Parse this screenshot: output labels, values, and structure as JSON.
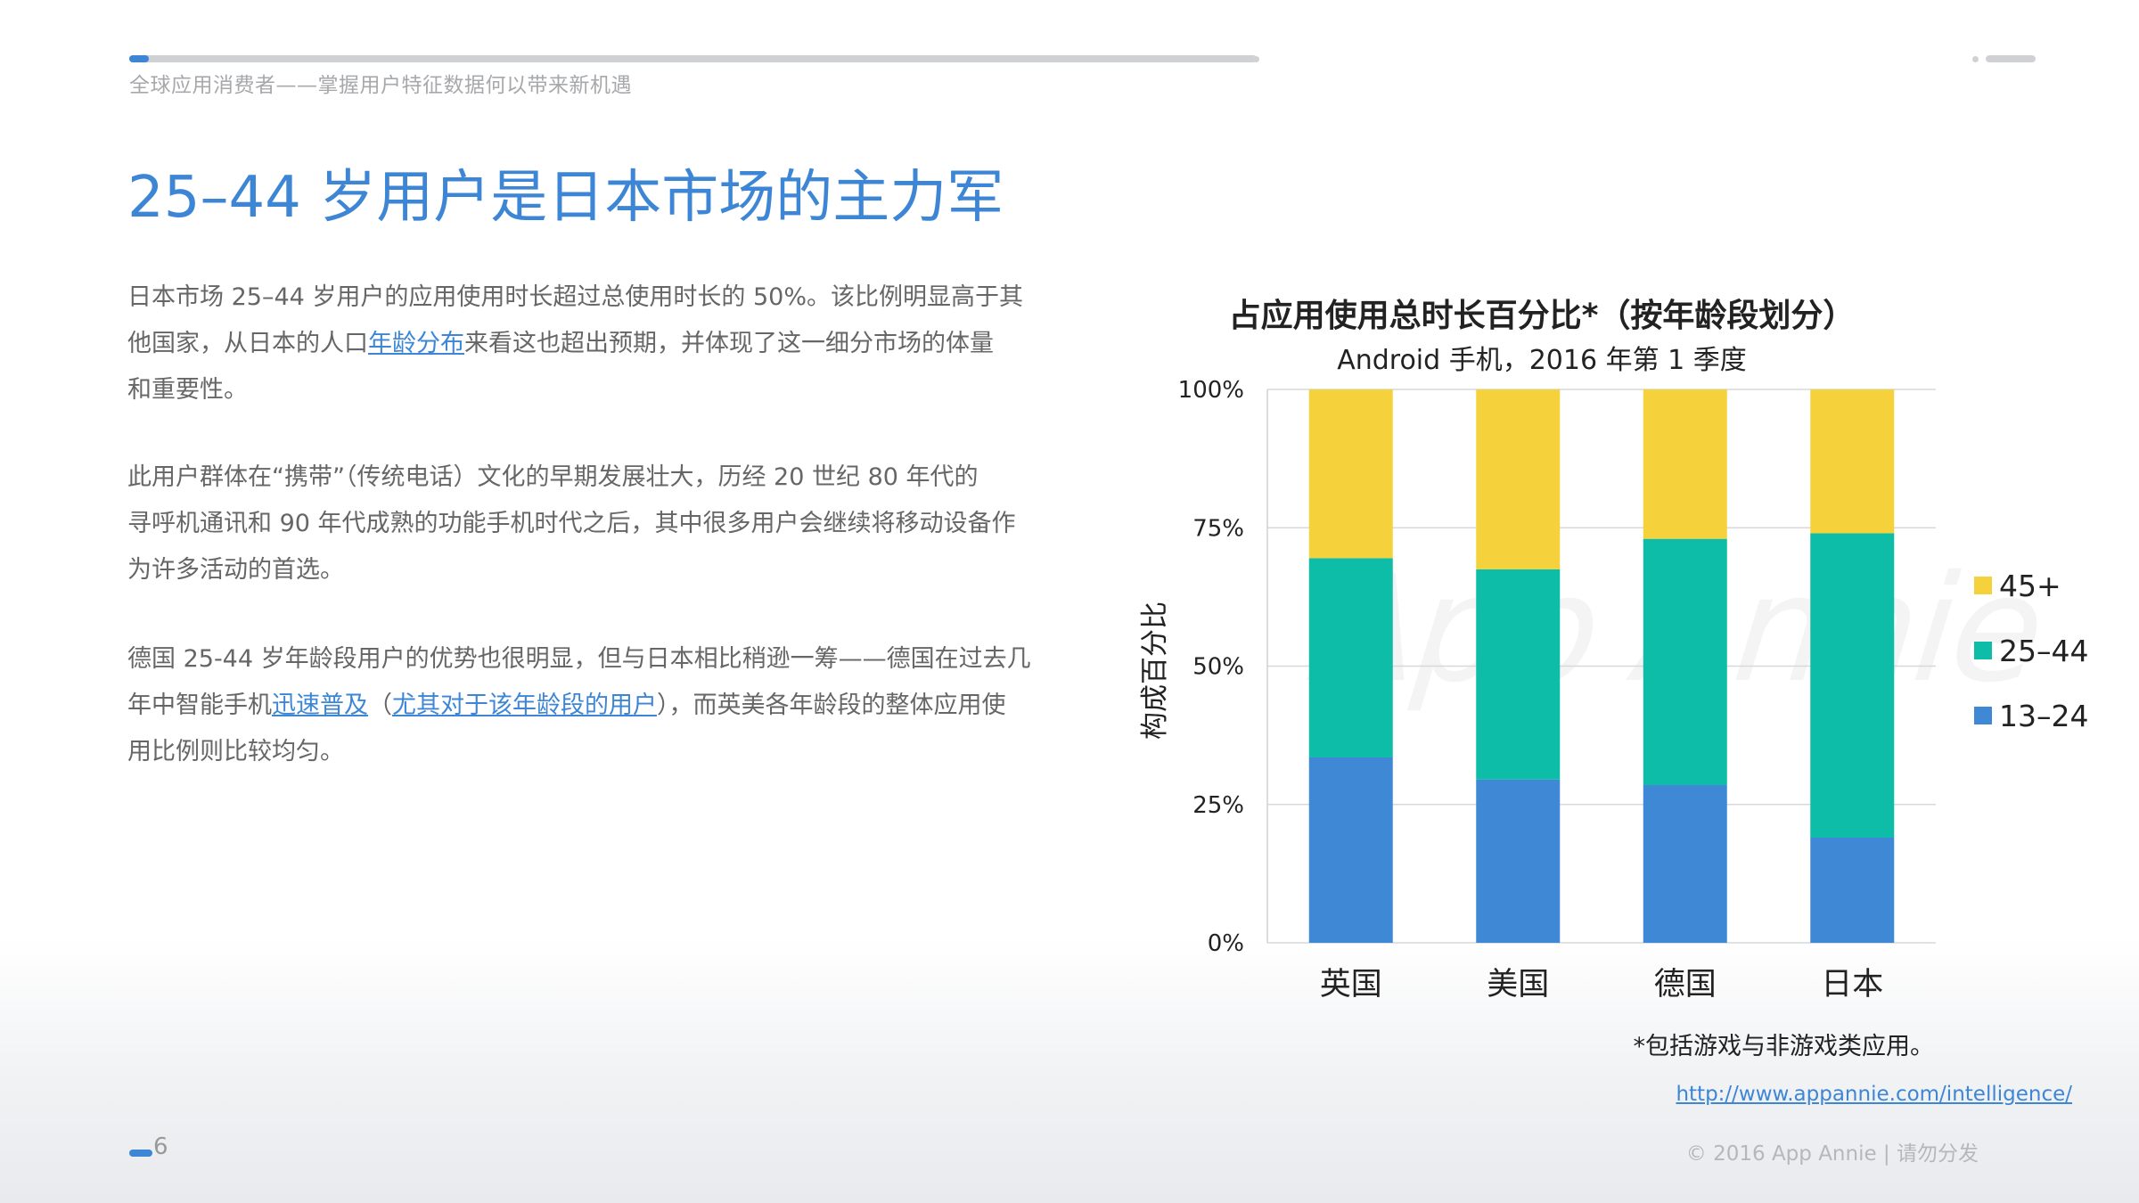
{
  "header": {
    "breadcrumb": "全球应用消费者——掌握用户特征数据何以带来新机遇"
  },
  "page_title": "25–44 岁用户是日本市场的主力军",
  "paragraphs": {
    "p1_line1": "日本市场 25–44 岁用户的应用使用时长超过总使用时长的 50%。该比例明显高于其",
    "p1_line2_pre": "他国家，从日本的人口",
    "p1_line2_link": "年龄分布",
    "p1_line2_post": "来看这也超出预期，并体现了这一细分市场的体量",
    "p1_line3": "和重要性。",
    "p2_line1": "此用户群体在“携带”（传统电话）文化的早期发展壮大，历经 20 世纪 80 年代的",
    "p2_line2": "寻呼机通讯和 90 年代成熟的功能手机时代之后，其中很多用户会继续将移动设备作",
    "p2_line3": "为许多活动的首选。",
    "p3_line1": "德国 25-44 岁年龄段用户的优势也很明显，但与日本相比稍逊一筹——德国在过去几",
    "p3_line2_pre": "年中智能手机",
    "p3_line2_link1": "迅速普及",
    "p3_line2_mid1": "（",
    "p3_line2_link2": "尤其对于该年龄段的用户",
    "p3_line2_post": "），而英美各年龄段的整体应用使",
    "p3_line3": "用比例则比较均匀。"
  },
  "chart_data": {
    "type": "bar",
    "stacked": true,
    "title": "占应用使用总时长百分比*（按年龄段划分）",
    "subtitle": "Android 手机，2016 年第 1 季度",
    "ylabel": "构成百分比",
    "xlabel": "",
    "categories": [
      "英国",
      "美国",
      "德国",
      "日本"
    ],
    "series": [
      {
        "name": "13–24",
        "color": "#3f88d6",
        "values": [
          33.5,
          29.5,
          28.5,
          19
        ]
      },
      {
        "name": "25–44",
        "color": "#0dbda7",
        "values": [
          36,
          38,
          44.5,
          55
        ]
      },
      {
        "name": "45+",
        "color": "#f5d23c",
        "values": [
          30.5,
          32.5,
          27,
          26
        ]
      }
    ],
    "ylim": [
      0,
      100
    ],
    "yticks": [
      "0%",
      "25%",
      "50%",
      "75%",
      "100%"
    ],
    "grid": true,
    "legend": "right",
    "watermark": "App Annie"
  },
  "footnote": "*包括游戏与非游戏类应用。",
  "source_link": "http://www.appannie.com/intelligence/",
  "copyright": "© 2016 App Annie | 请勿分发",
  "page_number": "6"
}
